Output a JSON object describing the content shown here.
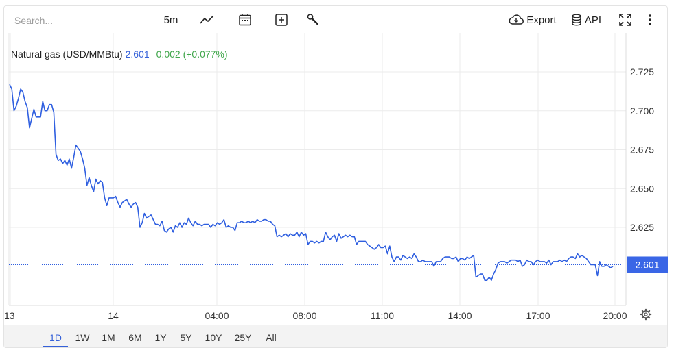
{
  "toolbar": {
    "search_placeholder": "Search...",
    "interval_label": "5m",
    "export_label": "Export",
    "api_label": "API",
    "icons": [
      "line-chart-icon",
      "calendar-icon",
      "add-indicator-icon",
      "wrench-icon",
      "cloud-download-icon",
      "database-icon",
      "fullscreen-icon",
      "more-vertical-icon"
    ]
  },
  "legend": {
    "instrument": "Natural gas (USD/MMBtu)",
    "price": "2.601",
    "change": "0.002 (+0.077%)"
  },
  "price_tag": "2.601",
  "range_buttons": [
    {
      "label": "1D",
      "active": true
    },
    {
      "label": "1W",
      "active": false
    },
    {
      "label": "1M",
      "active": false
    },
    {
      "label": "6M",
      "active": false
    },
    {
      "label": "1Y",
      "active": false
    },
    {
      "label": "5Y",
      "active": false
    },
    {
      "label": "10Y",
      "active": false
    },
    {
      "label": "25Y",
      "active": false
    },
    {
      "label": "All",
      "active": false
    }
  ],
  "colors": {
    "line": "#2f5fe0",
    "price_tag_bg": "#3a66e6",
    "change_positive": "#3fa64a",
    "grid": "#ebebeb"
  },
  "chart_data": {
    "type": "line",
    "title": "",
    "xlabel": "",
    "ylabel": "",
    "grid": true,
    "ylim": [
      2.575,
      2.745
    ],
    "y_ticks": [
      "2.725",
      "2.700",
      "2.675",
      "2.650",
      "2.625"
    ],
    "x_ticks": [
      "13",
      "14",
      "04:00",
      "08:00",
      "11:00",
      "14:00",
      "17:00",
      "20:00"
    ],
    "last_value": 2.601,
    "series": [
      {
        "values": [
          2.717,
          2.714,
          2.7,
          2.703,
          2.708,
          2.714,
          2.712,
          2.706,
          2.702,
          2.689,
          2.695,
          2.701,
          2.696,
          2.696,
          2.696,
          2.706,
          2.7,
          2.7,
          2.704,
          2.704,
          2.699,
          2.672,
          2.668,
          2.669,
          2.666,
          2.668,
          2.665,
          2.669,
          2.663,
          2.67,
          2.678,
          2.676,
          2.674,
          2.669,
          2.663,
          2.652,
          2.657,
          2.652,
          2.648,
          2.656,
          2.653,
          2.655,
          2.654,
          2.644,
          2.639,
          2.644,
          2.644,
          2.644,
          2.645,
          2.641,
          2.638,
          2.641,
          2.642,
          2.643,
          2.64,
          2.638,
          2.64,
          2.641,
          2.638,
          2.625,
          2.628,
          2.634,
          2.631,
          2.632,
          2.633,
          2.63,
          2.627,
          2.627,
          2.626,
          2.629,
          2.623,
          2.622,
          2.624,
          2.625,
          2.622,
          2.626,
          2.625,
          2.628,
          2.625,
          2.628,
          2.627,
          2.631,
          2.628,
          2.626,
          2.629,
          2.627,
          2.627,
          2.626,
          2.627,
          2.627,
          2.627,
          2.625,
          2.627,
          2.626,
          2.628,
          2.627,
          2.628,
          2.63,
          2.625,
          2.626,
          2.625,
          2.625,
          2.623,
          2.628,
          2.628,
          2.629,
          2.628,
          2.628,
          2.629,
          2.628,
          2.629,
          2.628,
          2.63,
          2.629,
          2.629,
          2.63,
          2.63,
          2.629,
          2.629,
          2.627,
          2.626,
          2.619,
          2.62,
          2.619,
          2.62,
          2.621,
          2.619,
          2.621,
          2.62,
          2.62,
          2.622,
          2.619,
          2.622,
          2.62,
          2.621,
          2.614,
          2.616,
          2.616,
          2.615,
          2.616,
          2.615,
          2.616,
          2.616,
          2.622,
          2.619,
          2.617,
          2.619,
          2.62,
          2.616,
          2.621,
          2.618,
          2.619,
          2.62,
          2.619,
          2.62,
          2.619,
          2.619,
          2.614,
          2.616,
          2.616,
          2.616,
          2.616,
          2.614,
          2.613,
          2.612,
          2.611,
          2.612,
          2.614,
          2.612,
          2.612,
          2.613,
          2.608,
          2.613,
          2.606,
          2.603,
          2.606,
          2.606,
          2.604,
          2.607,
          2.606,
          2.605,
          2.606,
          2.605,
          2.608,
          2.606,
          2.603,
          2.603,
          2.604,
          2.603,
          2.603,
          2.603,
          2.603,
          2.6,
          2.603,
          2.603,
          2.603,
          2.605,
          2.606,
          2.606,
          2.606,
          2.605,
          2.605,
          2.606,
          2.603,
          2.605,
          2.605,
          2.604,
          2.606,
          2.605,
          2.606,
          2.607,
          2.593,
          2.594,
          2.595,
          2.595,
          2.591,
          2.591,
          2.593,
          2.591,
          2.595,
          2.598,
          2.602,
          2.603,
          2.603,
          2.603,
          2.602,
          2.603,
          2.604,
          2.604,
          2.604,
          2.603,
          2.604,
          2.6,
          2.601,
          2.604,
          2.603,
          2.603,
          2.601,
          2.603,
          2.604,
          2.603,
          2.603,
          2.603,
          2.602,
          2.604,
          2.601,
          2.603,
          2.603,
          2.603,
          2.604,
          2.603,
          2.604,
          2.603,
          2.605,
          2.606,
          2.606,
          2.605,
          2.608,
          2.606,
          2.607,
          2.606,
          2.605,
          2.603,
          2.601,
          2.601,
          2.601,
          2.594,
          2.603,
          2.6,
          2.6,
          2.601,
          2.6,
          2.599,
          2.6
        ]
      }
    ]
  }
}
